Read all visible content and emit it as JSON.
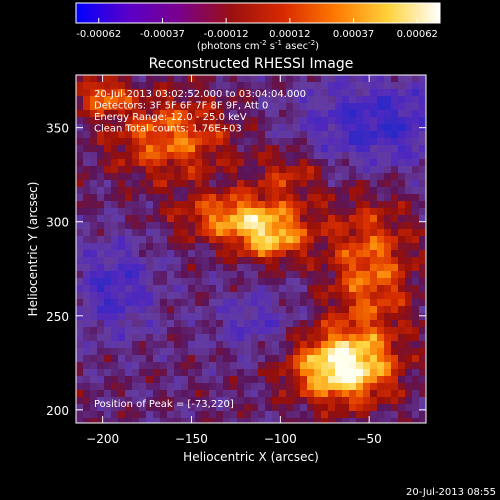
{
  "colorbar": {
    "tick_labels": [
      "-0.00062",
      "-0.00037",
      "-0.00012",
      "0.00012",
      "0.00037",
      "0.00062"
    ],
    "units_text": "(photons cm",
    "units_sup1": "-2",
    "units_mid": " s",
    "units_sup2": "-1",
    "units_mid2": " asec",
    "units_sup3": "-2",
    "units_end": ")",
    "colors": [
      "#0000ff",
      "#5a00c8",
      "#7a008a",
      "#9b1010",
      "#d82a00",
      "#ff7a00",
      "#ffd23a",
      "#ffffff"
    ]
  },
  "image": {
    "title": "Reconstructed RHESSI Image",
    "info_lines": [
      "20-Jul-2013 03:02:52.000 to 03:04:04.000",
      "Detectors: 3F 5F 6F 7F 8F 9F, Att 0",
      "Energy Range: 12.0 - 25.0 keV",
      "Clean      Total counts: 1.76E+03"
    ],
    "peak_label": "Position of Peak = [-73,220]",
    "peak_x": -73,
    "peak_y": 220,
    "xlabel": "Heliocentric X (arcsec)",
    "ylabel": "Heliocentric Y (arcsec)",
    "x_ticks": [
      -200,
      -150,
      -100,
      -50
    ],
    "y_ticks": [
      200,
      250,
      300,
      350
    ],
    "xlim": [
      -215,
      -18
    ],
    "ylim": [
      193,
      378
    ],
    "x_tick_labels": [
      "−200",
      "−150",
      "−100",
      "−50"
    ],
    "y_tick_labels": [
      "200",
      "250",
      "300",
      "350"
    ]
  },
  "footer": {
    "timestamp": "20-Jul-2013 08:55"
  }
}
